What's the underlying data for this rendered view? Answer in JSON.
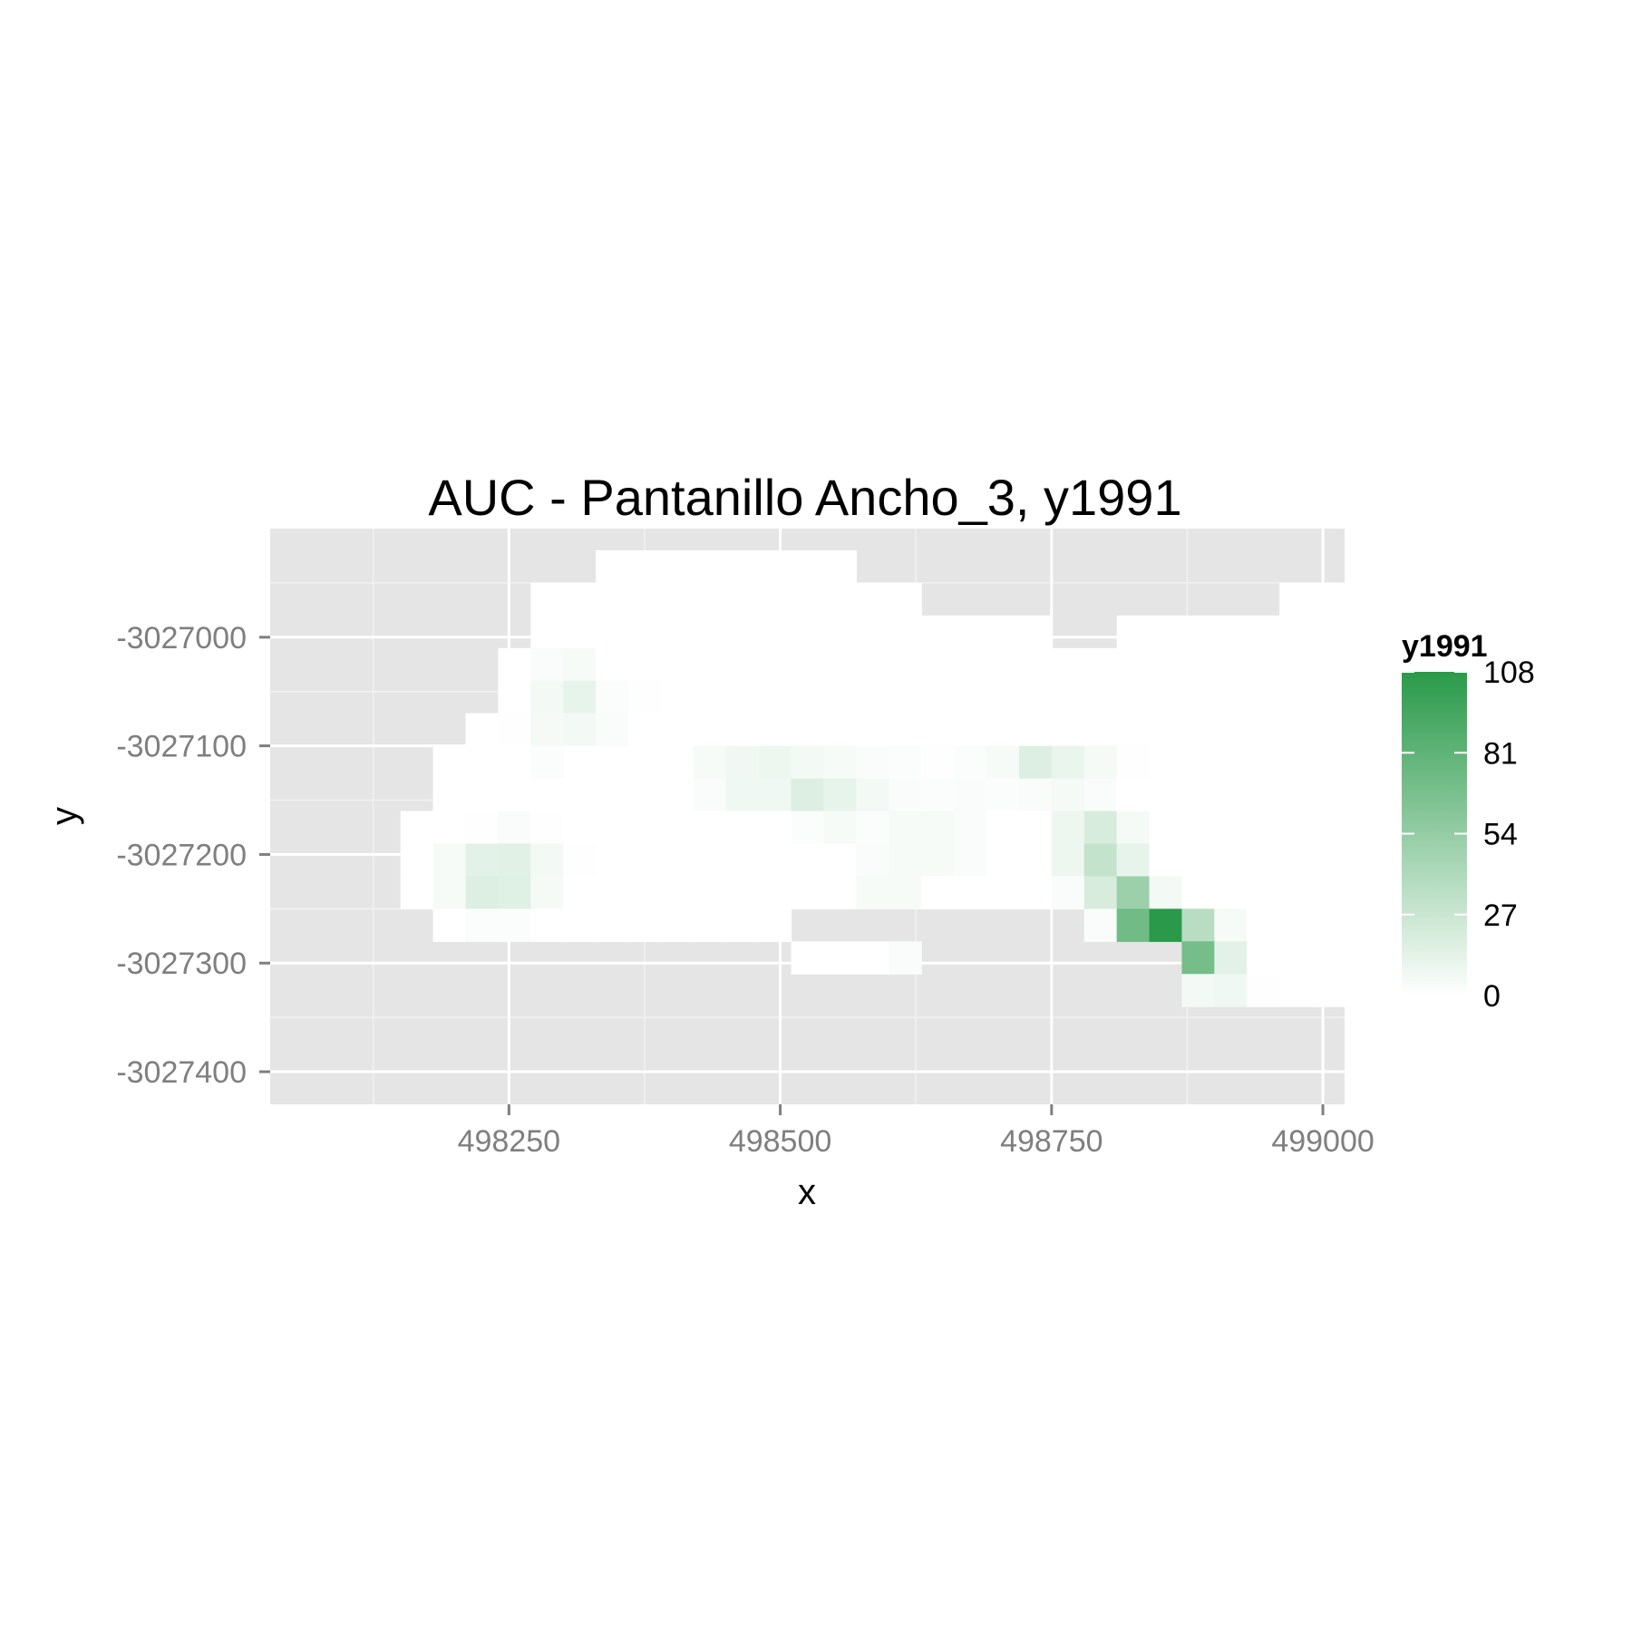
{
  "chart_data": {
    "type": "heatmap",
    "title": "AUC - Pantanillo Ancho_3, y1991",
    "xlabel": "x",
    "ylabel": "y",
    "xlim": [
      498030,
      499020
    ],
    "ylim": [
      -3027430,
      -3026900
    ],
    "x_ticks": [
      498250,
      498500,
      498750,
      499000
    ],
    "x_tick_labels": [
      "498250",
      "498500",
      "498750",
      "499000"
    ],
    "y_ticks": [
      -3027000,
      -3027100,
      -3027200,
      -3027300,
      -3027400
    ],
    "y_tick_labels": [
      "-3027000",
      "-3027100",
      "-3027200",
      "-3027300",
      "-3027400"
    ],
    "grid": true,
    "panel_background": "#e5e5e5",
    "cell_size": 30,
    "x_origin": 498090,
    "y_origin": -3026920,
    "color_scale": {
      "low": "#ffffff",
      "high": "#2a9a4a",
      "min": 0,
      "max": 108
    },
    "legend": {
      "title": "y1991",
      "breaks": [
        108,
        81,
        54,
        27,
        0
      ],
      "break_labels": [
        "108",
        "81",
        "54",
        "27",
        "0"
      ],
      "position": "right"
    },
    "grid_rows": [
      "........00000000..........................",
      "......000000000000...........00000000.....",
      "......0000000000000000..000000000000000...",
      ".....0000000000000000000000000000000000...",
      ".....00000000000000000000000000000000000..",
      "....000000000000000000000000000000000000..",
      "...000000000000000000000000000000000000000",
      "...000000000000000000000000000000000000000",
      "..0000000000000000000000000000000000000000",
      "..0000000000000000000000000000000000000000",
      "..0000000000000000000000000000000000000000",
      "...00000000000.........000000000000000000.",
      "..............0000........00000000000000..",
      "..........................00000000000000.."
    ],
    "cells": [
      [
        6,
        3,
        3
      ],
      [
        7,
        3,
        4
      ],
      [
        6,
        4,
        6
      ],
      [
        7,
        4,
        12
      ],
      [
        8,
        4,
        2
      ],
      [
        9,
        4,
        1
      ],
      [
        5,
        5,
        1
      ],
      [
        6,
        5,
        5
      ],
      [
        7,
        5,
        6
      ],
      [
        8,
        5,
        3
      ],
      [
        6,
        6,
        2
      ],
      [
        11,
        6,
        4
      ],
      [
        12,
        6,
        7
      ],
      [
        13,
        6,
        9
      ],
      [
        14,
        6,
        6
      ],
      [
        15,
        6,
        4
      ],
      [
        16,
        6,
        3
      ],
      [
        17,
        6,
        2
      ],
      [
        18,
        6,
        1
      ],
      [
        19,
        6,
        2
      ],
      [
        20,
        6,
        4
      ],
      [
        21,
        6,
        17
      ],
      [
        22,
        6,
        11
      ],
      [
        23,
        6,
        5
      ],
      [
        24,
        6,
        1
      ],
      [
        11,
        7,
        3
      ],
      [
        12,
        7,
        8
      ],
      [
        13,
        7,
        8
      ],
      [
        14,
        7,
        17
      ],
      [
        15,
        7,
        12
      ],
      [
        16,
        7,
        6
      ],
      [
        17,
        7,
        3
      ],
      [
        18,
        7,
        2
      ],
      [
        19,
        7,
        3
      ],
      [
        20,
        7,
        2
      ],
      [
        21,
        7,
        3
      ],
      [
        22,
        7,
        5
      ],
      [
        23,
        7,
        3
      ],
      [
        4,
        8,
        1
      ],
      [
        5,
        8,
        3
      ],
      [
        6,
        8,
        1
      ],
      [
        14,
        8,
        2
      ],
      [
        15,
        8,
        4
      ],
      [
        16,
        8,
        2
      ],
      [
        17,
        8,
        4
      ],
      [
        18,
        8,
        4
      ],
      [
        19,
        8,
        3
      ],
      [
        22,
        8,
        9
      ],
      [
        23,
        8,
        20
      ],
      [
        24,
        8,
        5
      ],
      [
        3,
        9,
        4
      ],
      [
        4,
        9,
        14
      ],
      [
        5,
        9,
        15
      ],
      [
        6,
        9,
        6
      ],
      [
        7,
        9,
        1
      ],
      [
        16,
        9,
        3
      ],
      [
        17,
        9,
        4
      ],
      [
        18,
        9,
        4
      ],
      [
        19,
        9,
        3
      ],
      [
        22,
        9,
        9
      ],
      [
        23,
        9,
        30
      ],
      [
        24,
        9,
        12
      ],
      [
        3,
        10,
        4
      ],
      [
        4,
        10,
        17
      ],
      [
        5,
        10,
        16
      ],
      [
        6,
        10,
        5
      ],
      [
        16,
        10,
        4
      ],
      [
        17,
        10,
        4
      ],
      [
        22,
        10,
        3
      ],
      [
        23,
        10,
        20
      ],
      [
        24,
        10,
        50
      ],
      [
        25,
        10,
        6
      ],
      [
        4,
        11,
        2
      ],
      [
        5,
        11,
        2
      ],
      [
        17,
        11,
        4
      ],
      [
        18,
        11,
        1
      ],
      [
        19,
        11,
        2
      ],
      [
        20,
        11,
        3
      ],
      [
        21,
        11,
        3
      ],
      [
        23,
        11,
        3
      ],
      [
        24,
        11,
        72
      ],
      [
        25,
        11,
        108
      ],
      [
        26,
        11,
        36
      ],
      [
        27,
        11,
        4
      ],
      [
        17,
        12,
        3
      ],
      [
        18,
        12,
        3
      ],
      [
        19,
        12,
        3
      ],
      [
        20,
        12,
        3
      ],
      [
        21,
        12,
        4
      ],
      [
        22,
        12,
        2
      ],
      [
        24,
        12,
        12
      ],
      [
        25,
        12,
        62
      ],
      [
        26,
        12,
        70
      ],
      [
        27,
        12,
        14
      ],
      [
        16,
        13,
        1
      ],
      [
        17,
        13,
        2
      ],
      [
        18,
        13,
        3
      ],
      [
        19,
        13,
        6
      ],
      [
        20,
        13,
        7
      ],
      [
        21,
        13,
        10
      ],
      [
        22,
        13,
        4
      ],
      [
        25,
        13,
        2
      ],
      [
        26,
        13,
        6
      ],
      [
        27,
        13,
        8
      ],
      [
        28,
        13,
        1
      ],
      [
        18,
        14,
        2
      ],
      [
        19,
        14,
        3
      ],
      [
        20,
        14,
        4
      ],
      [
        21,
        14,
        6
      ],
      [
        22,
        14,
        2
      ],
      [
        28,
        14,
        1
      ]
    ]
  }
}
